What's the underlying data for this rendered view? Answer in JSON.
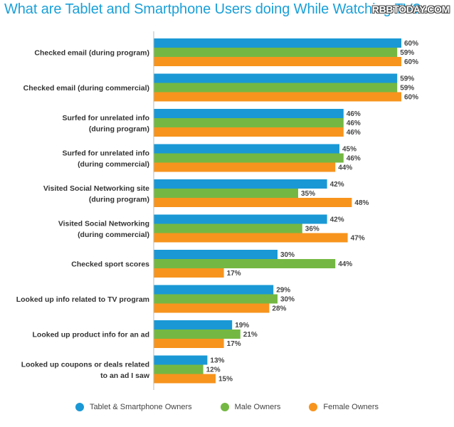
{
  "title": "What are Tablet and Smartphone Users doing While Watching TV?",
  "watermark": "RBBTODAY.COM",
  "colors": {
    "tablet": "#1a98d5",
    "male": "#74b843",
    "female": "#f7941d"
  },
  "chart_data": {
    "type": "bar",
    "orientation": "horizontal",
    "title": "What are Tablet and Smartphone Users doing While Watching TV?",
    "value_suffix": "%",
    "xlim": [
      0,
      60
    ],
    "categories": [
      [
        "Checked email (during program)"
      ],
      [
        "Checked email (during commercial)"
      ],
      [
        "Surfed for unrelated info",
        "(during program)"
      ],
      [
        "Surfed for unrelated info",
        "(during commercial)"
      ],
      [
        "Visited Social Networking site",
        "(during program)"
      ],
      [
        "Visited Social Networking",
        "(during commercial)"
      ],
      [
        "Checked sport scores"
      ],
      [
        "Looked up info related to TV program"
      ],
      [
        "Looked up product info for an ad"
      ],
      [
        "Looked up coupons or deals related",
        "to an ad I saw"
      ]
    ],
    "series": [
      {
        "name": "Tablet & Smartphone Owners",
        "color": "#1a98d5",
        "values": [
          60,
          59,
          46,
          45,
          42,
          42,
          30,
          29,
          19,
          13
        ]
      },
      {
        "name": "Male Owners",
        "color": "#74b843",
        "values": [
          59,
          59,
          46,
          46,
          35,
          36,
          44,
          30,
          21,
          12
        ]
      },
      {
        "name": "Female Owners",
        "color": "#f7941d",
        "values": [
          60,
          60,
          46,
          44,
          48,
          47,
          17,
          28,
          17,
          15
        ]
      }
    ],
    "legend": {
      "placement": "bottom"
    }
  }
}
